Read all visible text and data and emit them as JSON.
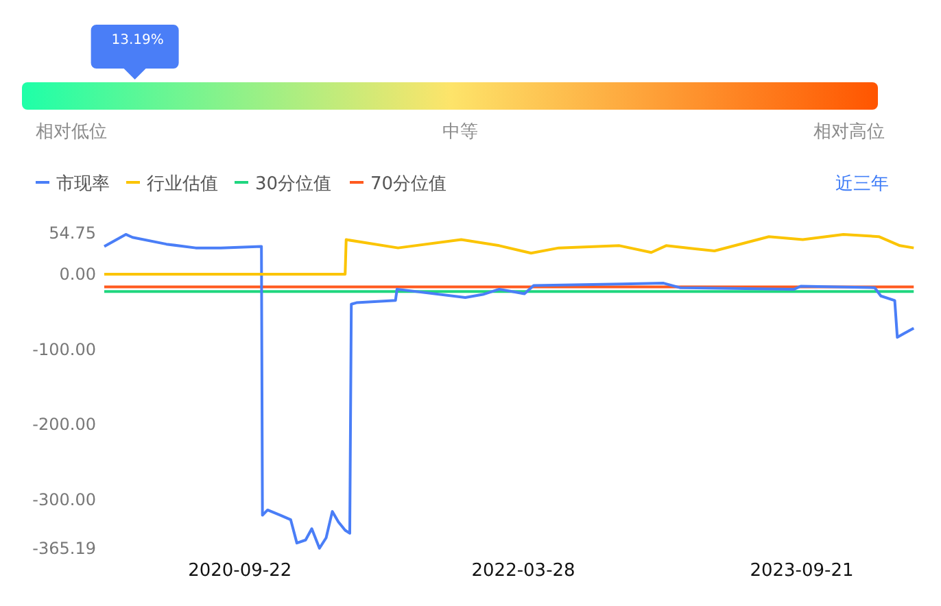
{
  "chart_data": [
    {
      "type": "other",
      "annotations": [
        "相对低位",
        "中等",
        "相对高位"
      ],
      "values": [
        13.19
      ],
      "value_labels": [
        "13.19%"
      ]
    },
    {
      "type": "line",
      "legend": "top left",
      "annotations": [
        "近三年"
      ],
      "xlim": [
        "2020-01-02",
        "2024-05-01"
      ],
      "xticks": [
        "2020-09-22",
        "2022-03-28",
        "2023-09-21"
      ],
      "ylim": [
        -365.19,
        54.75
      ],
      "yticks": [
        54.75,
        {
          "value": 0,
          "label": "0.00"
        },
        {
          "value": -100,
          "label": "-100.00"
        },
        {
          "value": -200,
          "label": "-200.00"
        },
        {
          "value": -300,
          "label": "-300.00"
        },
        -365.19
      ],
      "series": [
        {
          "name": "市现率",
          "color": "#4a7ef7",
          "x": [
            "2020-01-02",
            "2020-02-13",
            "2020-02-26",
            "2020-05-02",
            "2020-06-28",
            "2020-08-16",
            "2020-11-03",
            "2020-11-05",
            "2020-11-15",
            "2020-12-10",
            "2020-12-30",
            "2021-01-11",
            "2021-01-28",
            "2021-02-09",
            "2021-02-24",
            "2021-03-09",
            "2021-03-21",
            "2021-04-02",
            "2021-04-15",
            "2021-04-24",
            "2021-04-27",
            "2021-05-07",
            "2021-07-22",
            "2021-07-25",
            "2021-12-05",
            "2022-01-08",
            "2022-02-09",
            "2022-03-30",
            "2022-04-17",
            "2022-10-06",
            "2022-12-26",
            "2023-01-27",
            "2023-09-06",
            "2023-09-19",
            "2024-02-10",
            "2024-02-22",
            "2024-03-20",
            "2024-03-25",
            "2024-04-07",
            "2024-04-26"
          ],
          "values": [
            37,
            53,
            49,
            40,
            35,
            35,
            37,
            -321,
            -314,
            -321,
            -327,
            -358,
            -354,
            -339,
            -365,
            -351,
            -316,
            -330,
            -341,
            -345,
            -40,
            -38,
            -35,
            -20,
            -31,
            -27,
            -20,
            -26,
            -15,
            -13,
            -12,
            -18,
            -20,
            -16,
            -18,
            -29,
            -35,
            -84,
            -79,
            -72
          ]
        },
        {
          "name": "行业估值",
          "color": "#fbc400",
          "x": [
            "2020-01-02",
            "2021-04-15",
            "2021-04-17",
            "2021-07-27",
            "2021-11-27",
            "2022-02-09",
            "2022-04-12",
            "2022-06-05",
            "2022-10-01",
            "2022-12-02",
            "2022-12-31",
            "2023-04-04",
            "2023-07-19",
            "2023-09-23",
            "2023-12-11",
            "2024-02-18",
            "2024-03-30",
            "2024-04-26"
          ],
          "values": [
            0,
            0,
            46,
            35,
            46,
            38,
            28,
            35,
            38,
            29,
            38,
            31,
            50,
            46,
            53,
            50,
            38,
            35
          ]
        },
        {
          "name": "30分位值",
          "color": "#1fd67f",
          "x": [
            "2020-01-02",
            "2024-04-26"
          ],
          "values": [
            -23,
            -23
          ]
        },
        {
          "name": "70分位值",
          "color": "#ff5a1f",
          "x": [
            "2020-01-02",
            "2024-04-26"
          ],
          "values": [
            -17,
            -17
          ]
        }
      ]
    }
  ]
}
